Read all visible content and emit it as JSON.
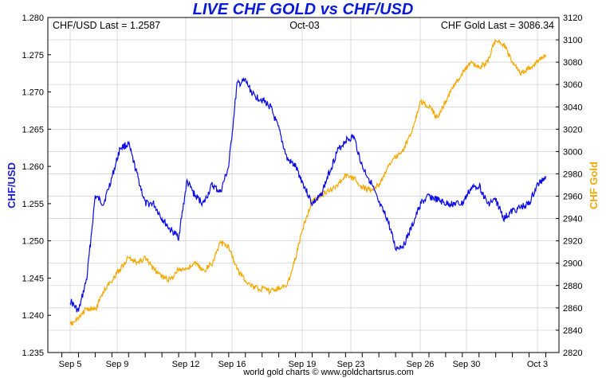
{
  "chart_data": {
    "type": "line",
    "title": "LIVE CHF GOLD vs CHF/USD",
    "date_label": "Oct-03",
    "left_info": "CHF/USD Last = 1.2587",
    "right_info": "CHF Gold Last = 3086.34",
    "y_left_label": "CHF/USD",
    "y_right_label": "CHF Gold",
    "footer": "world gold charts © www.goldchartsrus.com",
    "grid": true,
    "colors": {
      "left_series": "#0a0ae6",
      "right_series": "#f5a800",
      "grid": "#cccccc"
    },
    "x_ticks": [
      "Sep 5",
      "Sep 9",
      "Sep 12",
      "Sep 16",
      "Sep 19",
      "Sep 23",
      "Sep 26",
      "Sep 30",
      "Oct 3"
    ],
    "y_left": {
      "min": 1.235,
      "max": 1.28,
      "ticks": [
        "1.235",
        "1.240",
        "1.245",
        "1.250",
        "1.255",
        "1.260",
        "1.265",
        "1.270",
        "1.275",
        "1.280"
      ]
    },
    "y_right": {
      "min": 2820,
      "max": 3120,
      "ticks": [
        "2820",
        "2840",
        "2860",
        "2880",
        "2900",
        "2920",
        "2940",
        "2960",
        "2980",
        "3000",
        "3020",
        "3040",
        "3060",
        "3080",
        "3100",
        "3120"
      ]
    },
    "series": [
      {
        "axis": "left",
        "x": [
          0,
          0.5,
          1,
          1.5,
          2,
          2.5,
          3,
          3.5,
          4,
          4.5,
          5,
          5.5,
          6,
          6.5,
          7,
          7.5,
          8,
          8.5,
          9,
          9.5,
          10,
          10.5,
          11,
          11.5,
          12,
          12.5,
          13,
          13.5,
          14,
          14.5,
          15,
          15.5,
          16,
          16.5,
          17,
          17.5,
          18,
          18.5,
          19,
          19.5,
          20,
          20.5,
          21,
          21.5,
          22,
          22.5,
          23,
          23.5,
          24,
          24.5,
          25,
          25.5,
          26,
          26.5,
          27,
          27.5,
          28,
          28.5
        ],
        "values": [
          1.242,
          1.2405,
          1.245,
          1.256,
          1.255,
          1.2585,
          1.2625,
          1.263,
          1.259,
          1.255,
          1.255,
          1.253,
          1.2515,
          1.2505,
          1.258,
          1.256,
          1.255,
          1.2575,
          1.2565,
          1.26,
          1.271,
          1.2715,
          1.2695,
          1.269,
          1.268,
          1.265,
          1.261,
          1.26,
          1.2575,
          1.255,
          1.256,
          1.259,
          1.262,
          1.2635,
          1.264,
          1.26,
          1.258,
          1.255,
          1.253,
          1.249,
          1.2495,
          1.252,
          1.255,
          1.256,
          1.2555,
          1.255,
          1.255,
          1.255,
          1.257,
          1.2575,
          1.255,
          1.2555,
          1.253,
          1.254,
          1.2545,
          1.255,
          1.2575,
          1.2587
        ]
      },
      {
        "axis": "right",
        "x": [
          0,
          0.5,
          1,
          1.5,
          2,
          2.5,
          3,
          3.5,
          4,
          4.5,
          5,
          5.5,
          6,
          6.5,
          7,
          7.5,
          8,
          8.5,
          9,
          9.5,
          10,
          10.5,
          11,
          11.5,
          12,
          12.5,
          13,
          13.5,
          14,
          14.5,
          15,
          15.5,
          16,
          16.5,
          17,
          17.5,
          18,
          18.5,
          19,
          19.5,
          20,
          20.5,
          21,
          21.5,
          22,
          22.5,
          23,
          23.5,
          24,
          24.5,
          25,
          25.5,
          26,
          26.5,
          27,
          27.5,
          28,
          28.5
        ],
        "values": [
          2845,
          2850,
          2860,
          2858,
          2875,
          2885,
          2895,
          2905,
          2900,
          2905,
          2895,
          2888,
          2885,
          2895,
          2895,
          2900,
          2893,
          2900,
          2918,
          2915,
          2895,
          2885,
          2878,
          2877,
          2875,
          2878,
          2880,
          2905,
          2935,
          2955,
          2960,
          2965,
          2970,
          2978,
          2976,
          2968,
          2965,
          2970,
          2985,
          2995,
          3002,
          3020,
          3045,
          3040,
          3030,
          3045,
          3060,
          3070,
          3080,
          3075,
          3080,
          3100,
          3095,
          3080,
          3070,
          3075,
          3080,
          3086.34
        ]
      }
    ]
  }
}
